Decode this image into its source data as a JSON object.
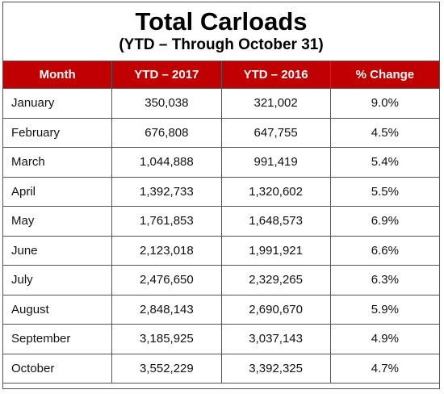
{
  "header": {
    "title": "Total Carloads",
    "subtitle": "(YTD – Through October 31)"
  },
  "table": {
    "columns": [
      "Month",
      "YTD – 2017",
      "YTD – 2016",
      "% Change"
    ],
    "rows": [
      [
        "January",
        "350,038",
        "321,002",
        "9.0%"
      ],
      [
        "February",
        "676,808",
        "647,755",
        "4.5%"
      ],
      [
        "March",
        "1,044,888",
        "991,419",
        "5.4%"
      ],
      [
        "April",
        "1,392,733",
        "1,320,602",
        "5.5%"
      ],
      [
        "May",
        "1,761,853",
        "1,648,573",
        "6.9%"
      ],
      [
        "June",
        "2,123,018",
        "1,991,921",
        "6.6%"
      ],
      [
        "July",
        "2,476,650",
        "2,329,265",
        "6.3%"
      ],
      [
        "August",
        "2,848,143",
        "2,690,670",
        "5.9%"
      ],
      [
        "September",
        "3,185,925",
        "3,037,143",
        "4.9%"
      ],
      [
        "October",
        "3,552,229",
        "3,392,325",
        "4.7%"
      ]
    ]
  }
}
